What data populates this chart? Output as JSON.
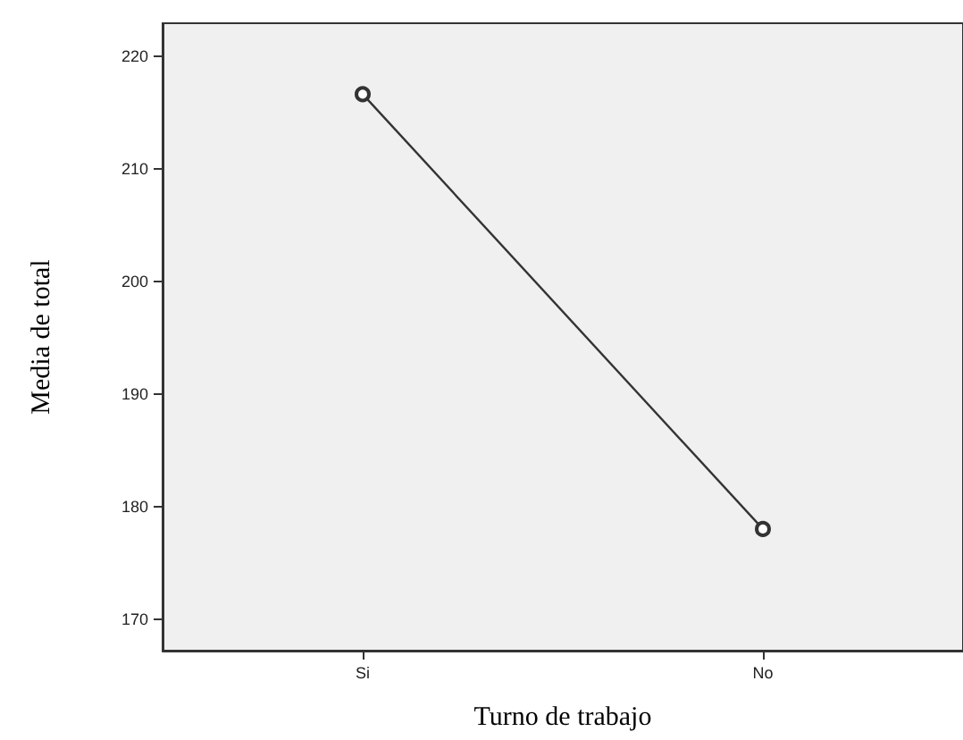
{
  "chart_data": {
    "type": "line",
    "xlabel": "Turno de trabajo",
    "ylabel": "Media de total",
    "categories": [
      "Si",
      "No"
    ],
    "series": [
      {
        "color": "#333333",
        "values": [
          216.6,
          178
        ]
      }
    ],
    "ylim": [
      167.2,
      222.9
    ],
    "yticks": [
      170,
      180,
      190,
      200,
      210,
      220
    ],
    "grid": false,
    "marker": "circle",
    "line_style": "solid"
  }
}
